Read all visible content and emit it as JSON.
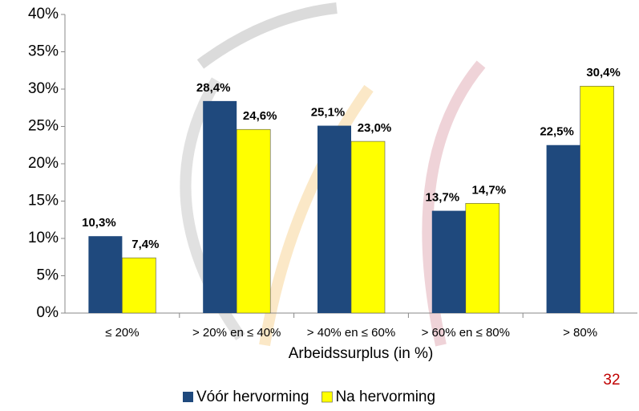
{
  "chart_data": {
    "type": "bar",
    "x_label": "Arbeidssurplus (in %)",
    "categories": [
      "≤ 20%",
      "> 20% en ≤ 40%",
      "> 40% en ≤ 60%",
      "> 60% en ≤ 80%",
      "> 80%"
    ],
    "series": [
      {
        "name": "Vóór hervorming",
        "color": "#1f497d",
        "values": [
          10.3,
          28.4,
          25.1,
          13.7,
          22.5
        ],
        "value_labels": [
          "10,3%",
          "28,4%",
          "25,1%",
          "13,7%",
          "22,5%"
        ]
      },
      {
        "name": "Na hervorming",
        "color": "#ffff00",
        "values": [
          7.4,
          24.6,
          23.0,
          14.7,
          30.4
        ],
        "value_labels": [
          "7,4%",
          "24,6%",
          "23,0%",
          "14,7%",
          "30,4%"
        ]
      }
    ],
    "ylim": [
      0,
      40
    ],
    "yticks": [
      {
        "value": 0,
        "label": "0%"
      },
      {
        "value": 5,
        "label": "5%"
      },
      {
        "value": 10,
        "label": "10%"
      },
      {
        "value": 15,
        "label": "15%"
      },
      {
        "value": 20,
        "label": "20%"
      },
      {
        "value": 25,
        "label": "25%"
      },
      {
        "value": 30,
        "label": "30%"
      },
      {
        "value": 35,
        "label": "35%"
      },
      {
        "value": 40,
        "label": "40%"
      }
    ],
    "legend": "bottom"
  },
  "page_number": "32"
}
